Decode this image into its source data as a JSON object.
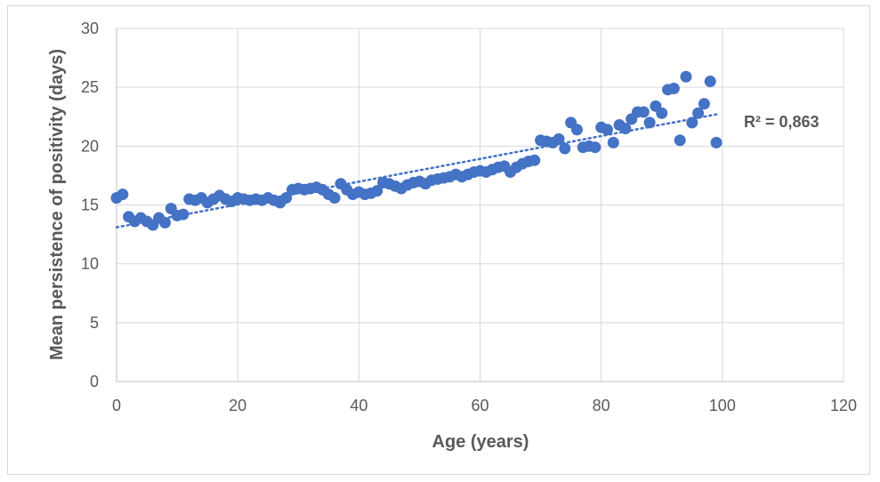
{
  "chart_data": {
    "type": "scatter",
    "title": "",
    "xlabel": "Age (years)",
    "ylabel": "Mean persistence of positivity (days)",
    "xlim": [
      0,
      120
    ],
    "ylim": [
      0,
      30
    ],
    "xticks": [
      "0",
      "20",
      "40",
      "60",
      "80",
      "100",
      "120"
    ],
    "yticks": [
      "0",
      "5",
      "10",
      "15",
      "20",
      "25",
      "30"
    ],
    "grid": true,
    "legend": "none",
    "annotation": "R² = 0,863",
    "trendline": {
      "type": "linear",
      "style": "dotted",
      "x": [
        0,
        99
      ],
      "y": [
        13.1,
        22.7
      ]
    },
    "colors": {
      "points": "#4472c4",
      "trend": "#4472c4",
      "grid": "#d9d9d9",
      "axis": "#bfbfbf"
    },
    "series": [
      {
        "x": [
          0,
          1,
          2,
          3,
          4,
          5,
          6,
          7,
          8,
          9,
          10,
          11,
          12,
          13,
          14,
          15,
          16,
          17,
          18,
          19,
          20,
          21,
          22,
          23,
          24,
          25,
          26,
          27,
          28,
          29,
          30,
          31,
          32,
          33,
          34,
          35,
          36,
          37,
          38,
          39,
          40,
          41,
          42,
          43,
          44,
          45,
          46,
          47,
          48,
          49,
          50,
          51,
          52,
          53,
          54,
          55,
          56,
          57,
          58,
          59,
          60,
          61,
          62,
          63,
          64,
          65,
          66,
          67,
          68,
          69,
          70,
          71,
          72,
          73,
          74,
          75,
          76,
          77,
          78,
          79,
          80,
          81,
          82,
          83,
          84,
          85,
          86,
          87,
          88,
          89,
          90,
          91,
          92,
          93,
          94,
          95,
          96,
          97,
          98,
          99
        ],
        "y": [
          15.6,
          15.9,
          14.0,
          13.6,
          13.9,
          13.6,
          13.3,
          13.9,
          13.5,
          14.7,
          14.1,
          14.2,
          15.5,
          15.4,
          15.6,
          15.2,
          15.5,
          15.8,
          15.5,
          15.3,
          15.6,
          15.5,
          15.4,
          15.5,
          15.4,
          15.6,
          15.4,
          15.2,
          15.6,
          16.3,
          16.4,
          16.3,
          16.4,
          16.5,
          16.3,
          15.9,
          15.6,
          16.8,
          16.3,
          15.9,
          16.1,
          15.9,
          16.0,
          16.2,
          16.9,
          16.8,
          16.6,
          16.4,
          16.7,
          16.9,
          17.0,
          16.8,
          17.1,
          17.2,
          17.3,
          17.4,
          17.6,
          17.4,
          17.6,
          17.8,
          17.9,
          17.8,
          18.0,
          18.2,
          18.3,
          17.8,
          18.2,
          18.5,
          18.7,
          18.8,
          20.5,
          20.4,
          20.3,
          20.6,
          19.8,
          22.0,
          21.4,
          19.9,
          20.0,
          19.9,
          21.6,
          21.4,
          20.3,
          21.8,
          21.5,
          22.3,
          22.9,
          22.9,
          22.0,
          23.4,
          22.8,
          24.8,
          24.9,
          20.5,
          25.9,
          22.0,
          22.8,
          23.6,
          25.5,
          20.3
        ]
      }
    ]
  }
}
